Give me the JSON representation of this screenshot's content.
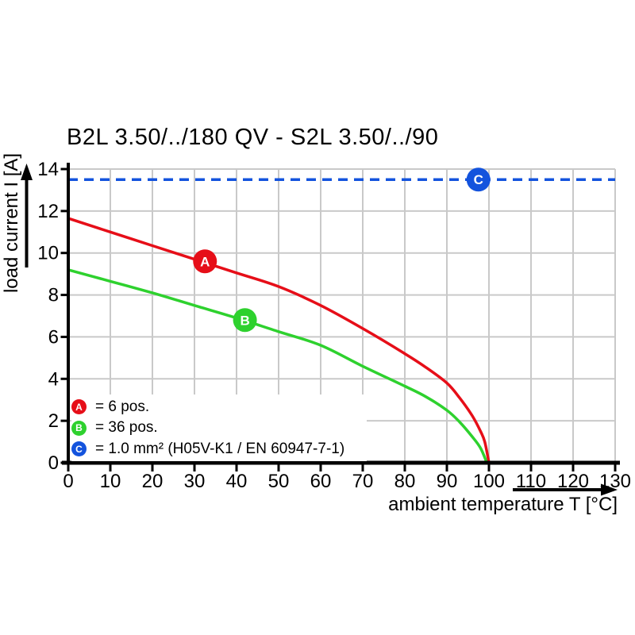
{
  "chart_data": {
    "type": "line",
    "title": "B2L 3.50/../180 QV - S2L 3.50/../90",
    "xlabel": "ambient temperature T [°C]",
    "ylabel": "load current I [A]",
    "xlim": [
      0,
      130
    ],
    "ylim": [
      0,
      14
    ],
    "x_ticks": [
      0,
      10,
      20,
      30,
      40,
      50,
      60,
      70,
      80,
      90,
      100,
      110,
      120,
      130
    ],
    "y_ticks": [
      0,
      2,
      4,
      6,
      8,
      10,
      12,
      14
    ],
    "grid": true,
    "grid_color": "#c9c9c9",
    "legend_position": "inside bottom-left",
    "series": [
      {
        "name": "A",
        "label": "6 pos.",
        "color": "#e60e18",
        "style": "solid",
        "marker_at": [
          32.5,
          9.6
        ],
        "points": [
          [
            0,
            11.65
          ],
          [
            10,
            11.0
          ],
          [
            20,
            10.35
          ],
          [
            30,
            9.7
          ],
          [
            40,
            9.05
          ],
          [
            50,
            8.4
          ],
          [
            60,
            7.5
          ],
          [
            70,
            6.4
          ],
          [
            80,
            5.2
          ],
          [
            85,
            4.55
          ],
          [
            90,
            3.8
          ],
          [
            93,
            3.1
          ],
          [
            96,
            2.25
          ],
          [
            98,
            1.5
          ],
          [
            99,
            1.0
          ],
          [
            100,
            0
          ]
        ]
      },
      {
        "name": "B",
        "label": "36 pos.",
        "color": "#2ed12e",
        "style": "solid",
        "marker_at": [
          42,
          6.8
        ],
        "points": [
          [
            0,
            9.2
          ],
          [
            10,
            8.65
          ],
          [
            20,
            8.1
          ],
          [
            30,
            7.5
          ],
          [
            40,
            6.9
          ],
          [
            50,
            6.25
          ],
          [
            60,
            5.6
          ],
          [
            70,
            4.6
          ],
          [
            80,
            3.65
          ],
          [
            85,
            3.15
          ],
          [
            90,
            2.5
          ],
          [
            93,
            1.95
          ],
          [
            96,
            1.25
          ],
          [
            98,
            0.7
          ],
          [
            99.5,
            0
          ]
        ]
      },
      {
        "name": "C",
        "label": "1.0 mm² (H05V-K1 / EN 60947-7-1)",
        "color": "#1353dd",
        "style": "dashed",
        "hline_value": 13.5,
        "marker_at": [
          97.5,
          13.5
        ]
      }
    ]
  },
  "legend": {
    "items": [
      {
        "key": "A",
        "color": "#e60e18",
        "text": "= 6 pos."
      },
      {
        "key": "B",
        "color": "#2ed12e",
        "text": "= 36 pos."
      },
      {
        "key": "C",
        "color": "#1353dd",
        "text": "= 1.0 mm² (H05V-K1 / EN 60947-7-1)"
      }
    ]
  }
}
